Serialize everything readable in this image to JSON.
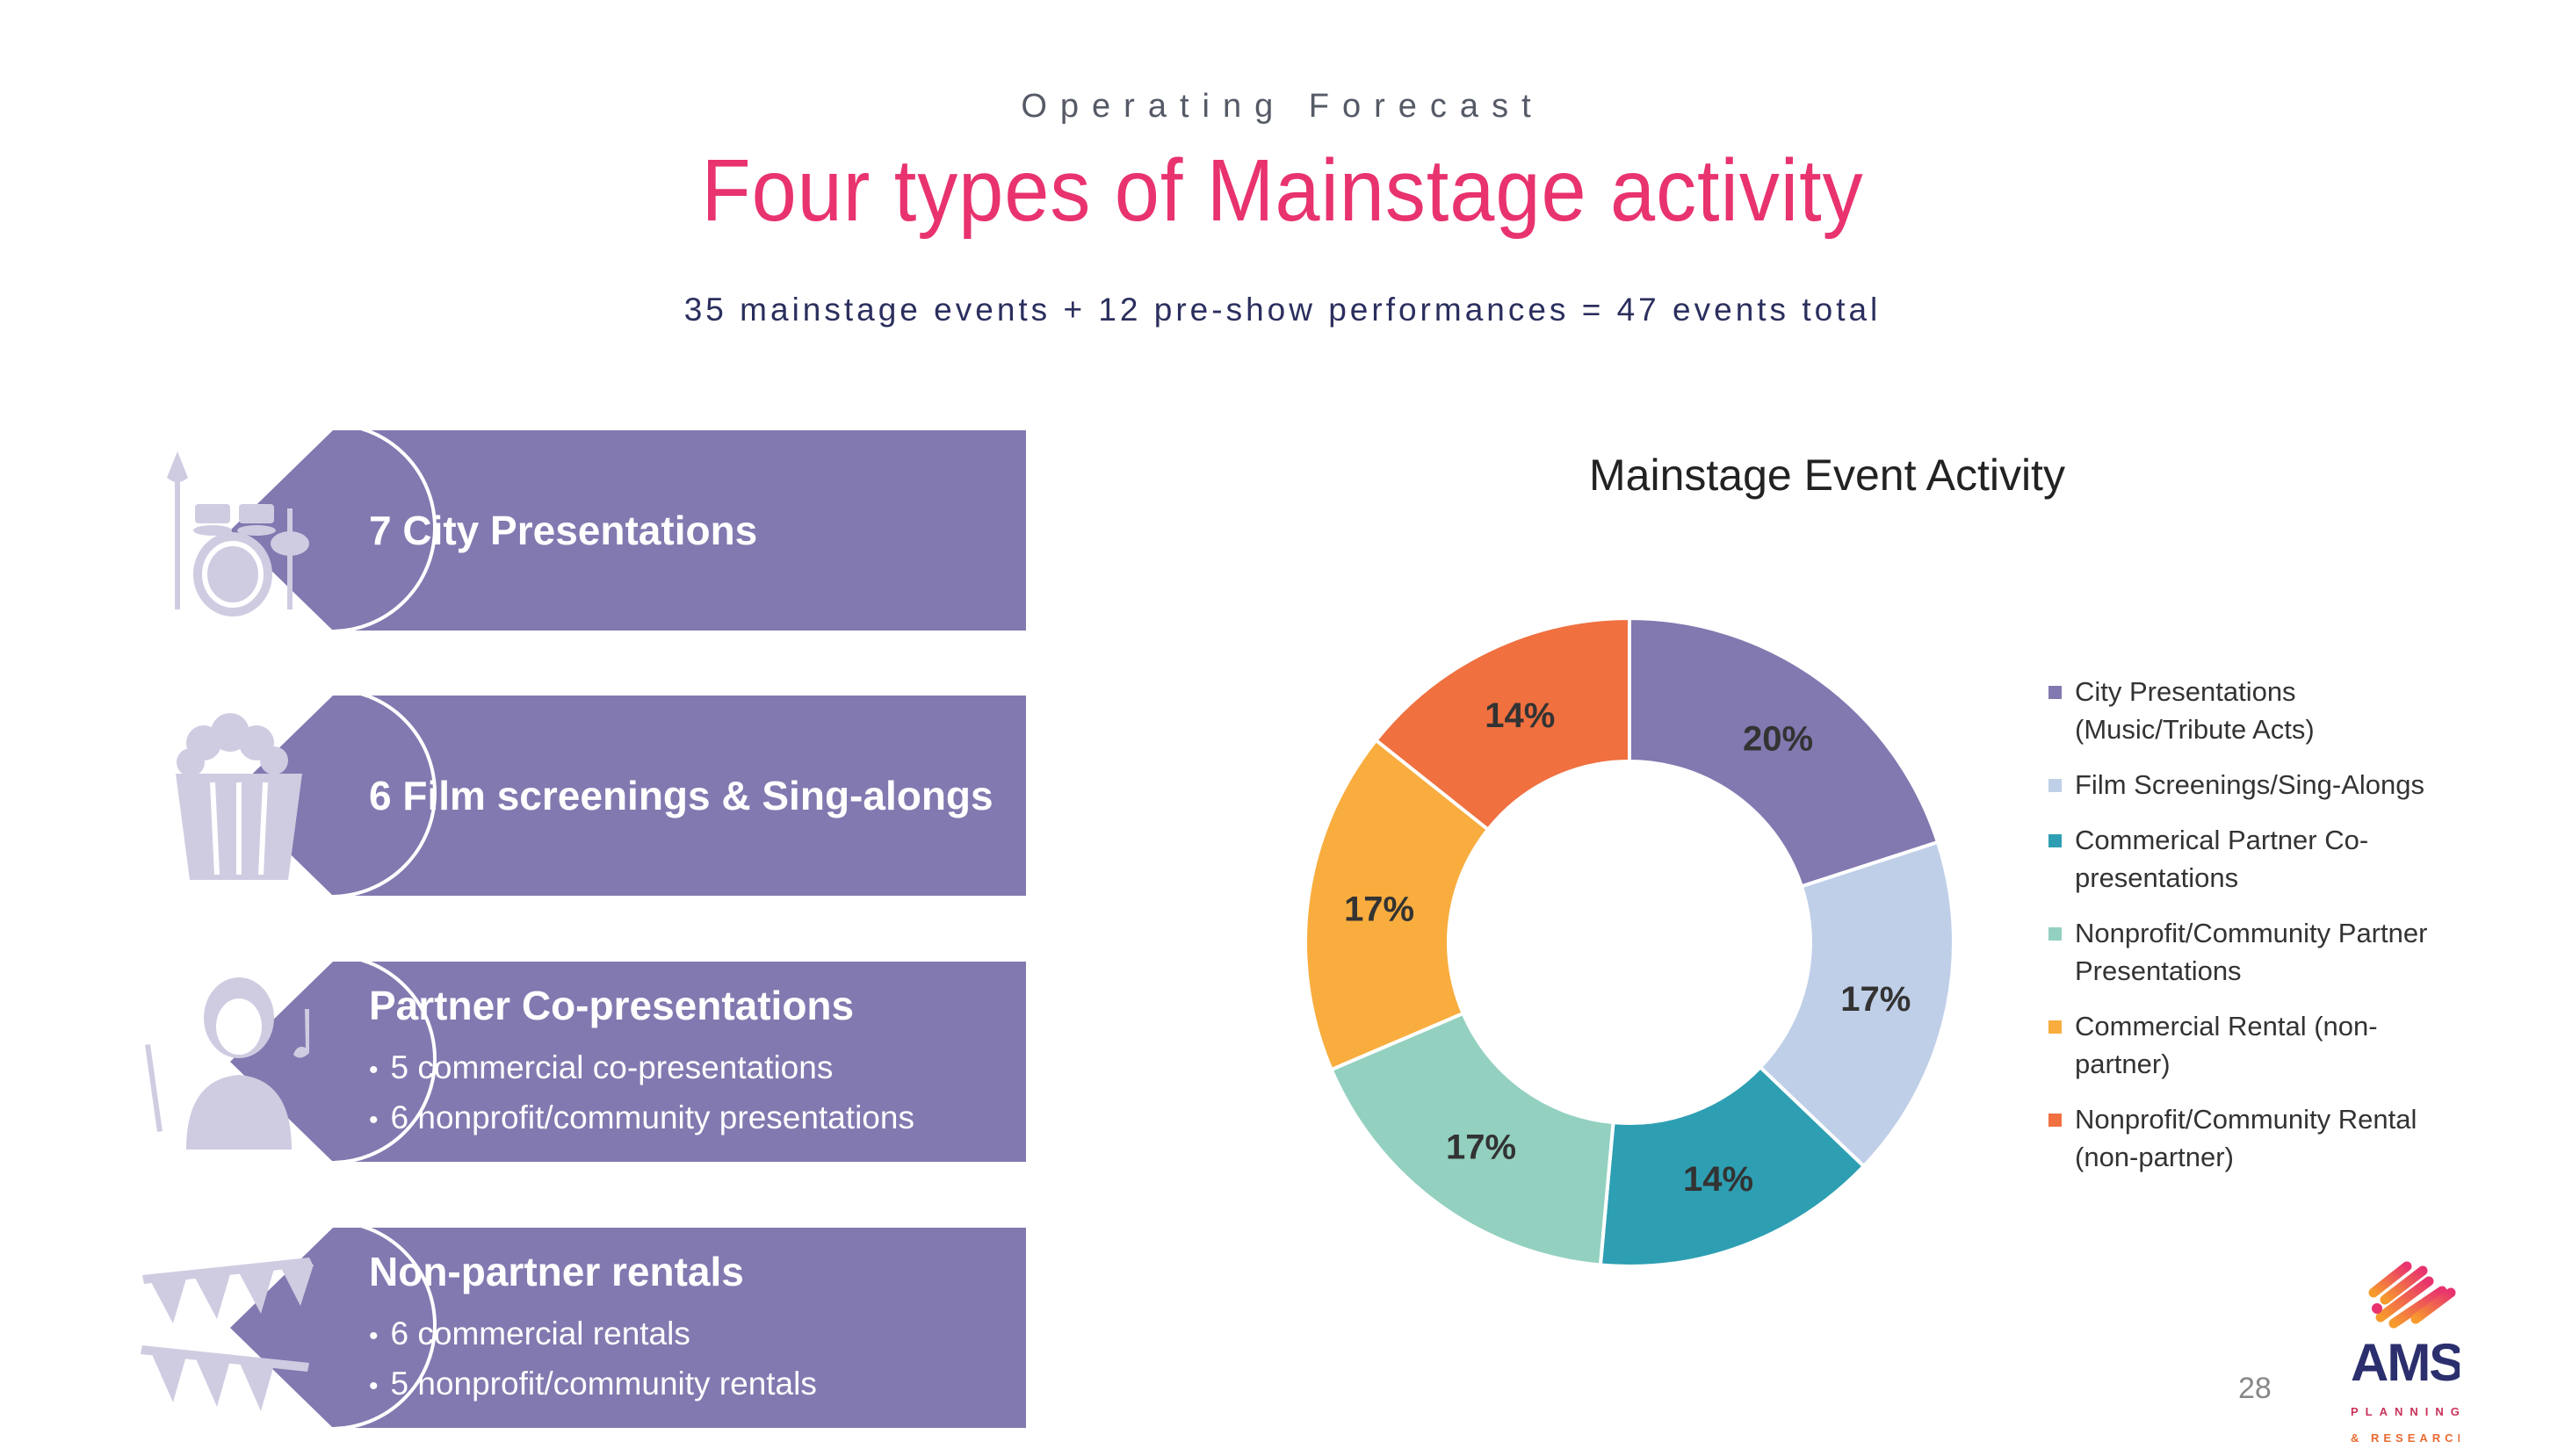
{
  "header": {
    "kicker": "Operating Forecast",
    "title": "Four types of Mainstage activity",
    "subtitle": "35 mainstage events + 12 pre-show performances = 47 events total"
  },
  "cards": [
    {
      "icon": "drum-kit-icon",
      "heading": "7 City Presentations",
      "bullets": []
    },
    {
      "icon": "popcorn-icon",
      "heading": "6 Film screenings & Sing-alongs",
      "bullets": []
    },
    {
      "icon": "conductor-icon",
      "heading": "Partner Co-presentations",
      "bullets": [
        "5 commercial co-presentations",
        "6 nonprofit/community presentations"
      ]
    },
    {
      "icon": "bunting-icon",
      "heading": "Non-partner rentals",
      "bullets": [
        "6 commercial rentals",
        "5 nonprofit/community rentals"
      ]
    }
  ],
  "chart_data": {
    "type": "pie",
    "variant": "donut",
    "title": "Mainstage Event Activity",
    "categories": [
      "City Presentations (Music/Tribute Acts)",
      "Film Screenings/Sing-Alongs",
      "Commerical Partner Co-presentations",
      "Nonprofit/Community Partner Presentations",
      "Commercial Rental (non-partner)",
      "Nonprofit/Community Rental (non-partner)"
    ],
    "values": [
      7,
      6,
      5,
      6,
      6,
      5
    ],
    "labels": [
      "20%",
      "17%",
      "14%",
      "17%",
      "17%",
      "14%"
    ],
    "colors": [
      "#8279b0",
      "#bfcfe8",
      "#2e9fb2",
      "#93d0c0",
      "#f8ad3e",
      "#f07040"
    ],
    "legend": "right"
  },
  "footer": {
    "page_number": "28",
    "logo_text": "AMS PLANNING & RESEARCH"
  },
  "colors": {
    "accent": "#e8336e",
    "card": "#8279b0",
    "icon": "#cfcce2"
  }
}
